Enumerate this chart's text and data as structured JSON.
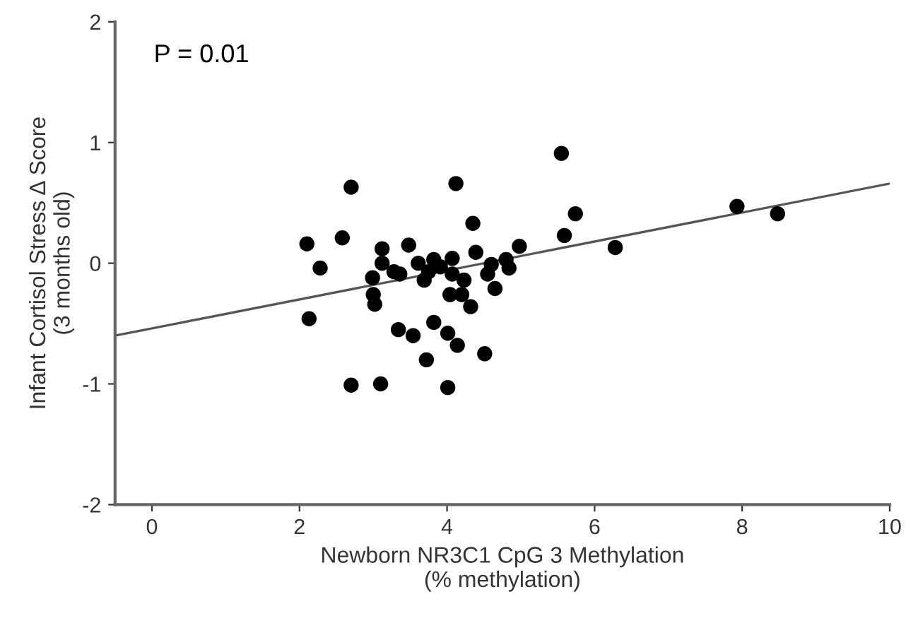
{
  "chart_data": {
    "type": "scatter",
    "xlabel": "Newborn NR3C1 CpG 3 Methylation\n(% methylation)",
    "ylabel": "Infant Cortisol Stress Δ Score\n(3 months old)",
    "annotations": [
      "P = 0.01"
    ],
    "xlim": [
      -0.5,
      10
    ],
    "xticks": [
      0,
      2,
      4,
      6,
      8,
      10
    ],
    "ylim": [
      -2,
      2
    ],
    "yticks": [
      -2,
      -1,
      0,
      1,
      2
    ],
    "grid": false,
    "series": [
      {
        "color": "#000000",
        "marker": "circle",
        "x": [
          2.7,
          4.12,
          4.35,
          2.1,
          2.58,
          3.12,
          3.48,
          2.28,
          3.12,
          3.28,
          3.36,
          2.99,
          3.61,
          3.82,
          3.91,
          4.07,
          3.75,
          3.69,
          4.07,
          4.23,
          4.39,
          4.6,
          4.8,
          4.84,
          4.98,
          4.55,
          4.65,
          4.04,
          4.2,
          4.32,
          3.0,
          3.02,
          2.13,
          3.82,
          3.34,
          3.54,
          4.01,
          4.14,
          4.51,
          3.72,
          2.7,
          3.1,
          4.01,
          5.55,
          5.74,
          5.59,
          6.28,
          7.93,
          8.48
        ],
        "values": [
          0.63,
          0.66,
          0.33,
          0.16,
          0.21,
          0.12,
          0.15,
          -0.04,
          0.0,
          -0.07,
          -0.09,
          -0.12,
          0.0,
          0.03,
          -0.03,
          0.04,
          -0.07,
          -0.14,
          -0.09,
          -0.14,
          0.09,
          -0.01,
          0.03,
          -0.04,
          0.14,
          -0.09,
          -0.21,
          -0.26,
          -0.26,
          -0.36,
          -0.26,
          -0.34,
          -0.46,
          -0.49,
          -0.55,
          -0.6,
          -0.58,
          -0.68,
          -0.75,
          -0.8,
          -1.01,
          -1.0,
          -1.03,
          0.91,
          0.41,
          0.23,
          0.13,
          0.47,
          0.41
        ]
      },
      {
        "type": "line",
        "color": "#555555",
        "line_style": "solid",
        "marker": "none",
        "x": [
          -0.5,
          10
        ],
        "values": [
          -0.6,
          0.66
        ]
      }
    ]
  }
}
